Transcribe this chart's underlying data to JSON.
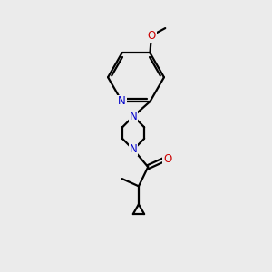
{
  "bg_color": "#ebebeb",
  "bond_color": "#000000",
  "N_color": "#0000cc",
  "O_color": "#cc0000",
  "font_size": 8.5,
  "line_width": 1.6,
  "fig_size": [
    3.0,
    3.0
  ],
  "dpi": 100,
  "xlim": [
    0,
    10
  ],
  "ylim": [
    0,
    10
  ]
}
